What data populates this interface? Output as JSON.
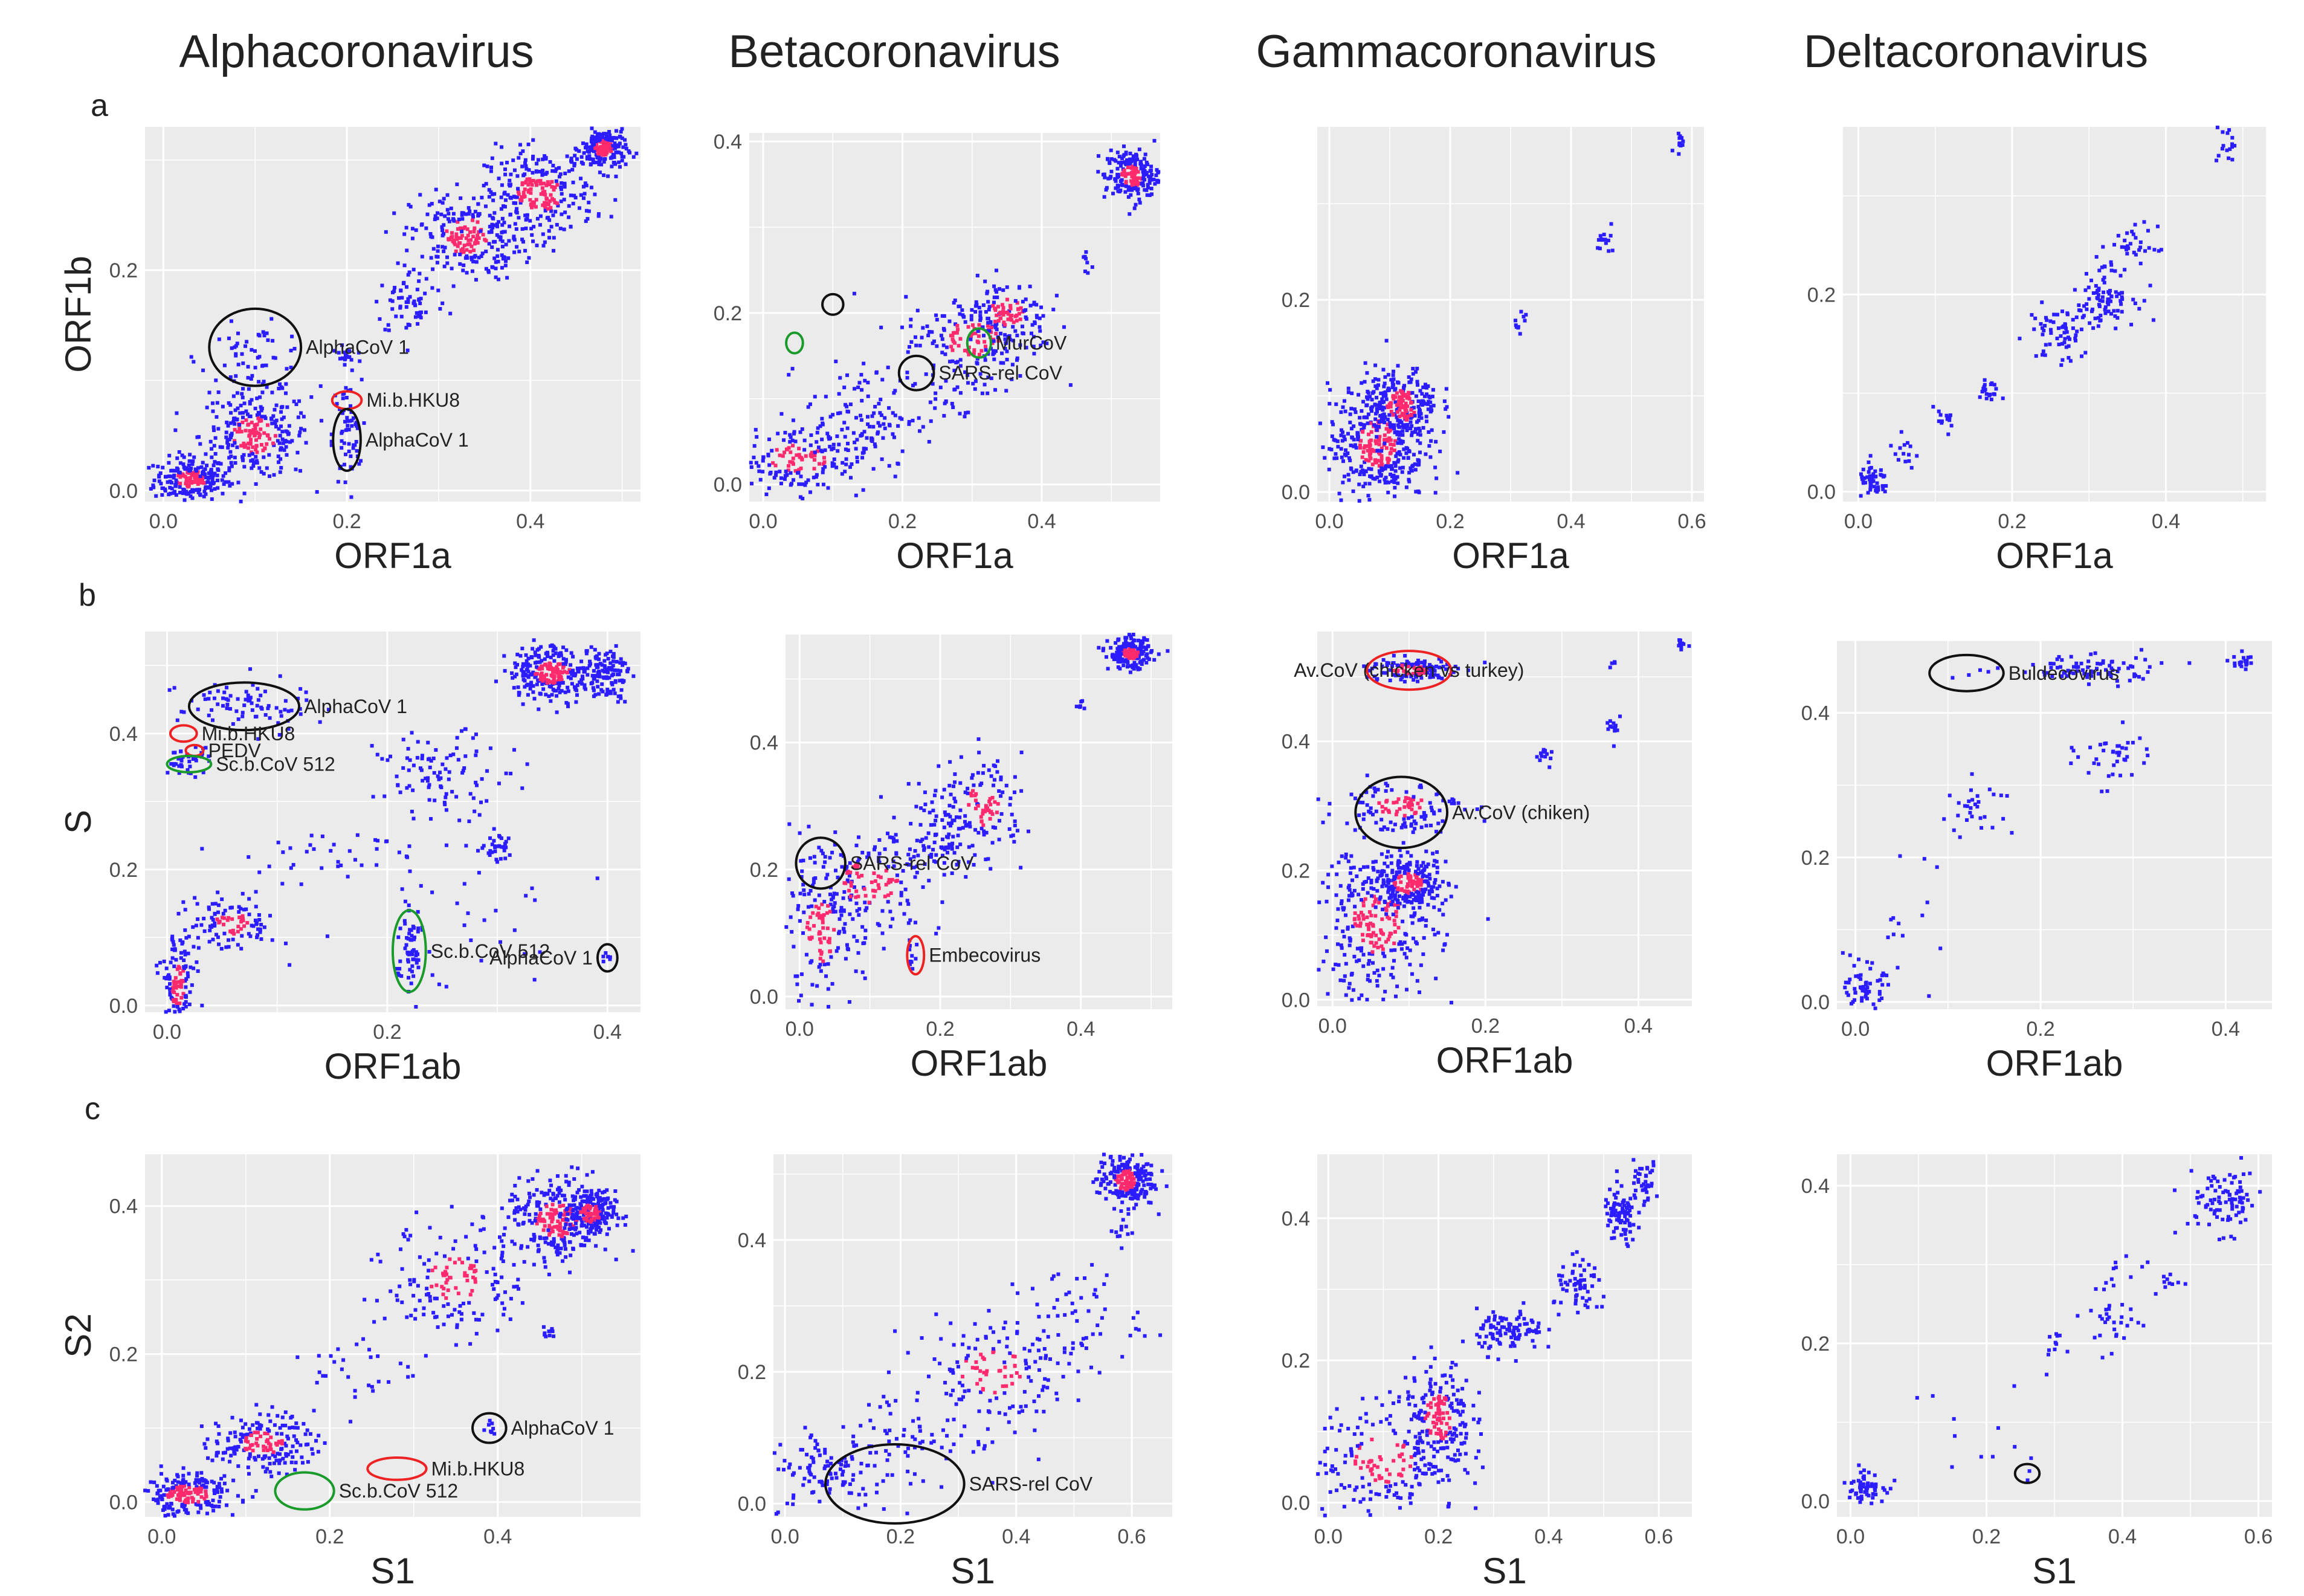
{
  "colors": {
    "panel_bg": "#ebebeb",
    "grid": "#ffffff",
    "point_low": "#2b1dff",
    "point_high": "#ff2a6d",
    "black": "#111111",
    "red": "#ee2222",
    "green": "#1a9a2a"
  },
  "columns": [
    "Alphacoronavirus",
    "Betacoronavirus",
    "Gammacoronavirus",
    "Deltacoronavirus"
  ],
  "rows": [
    "a",
    "b",
    "c"
  ],
  "chart_data": [
    {
      "id": "a-alpha",
      "type": "scatter",
      "xlabel": "ORF1a",
      "ylabel": "ORF1b",
      "xlim": [
        -0.02,
        0.52
      ],
      "ylim": [
        -0.01,
        0.33
      ],
      "xticks": [
        "0.0",
        "0.2",
        "0.4"
      ],
      "yticks": [
        "0.0",
        "0.2"
      ],
      "xtick_vals": [
        0,
        0.2,
        0.4
      ],
      "ytick_vals": [
        0,
        0.2
      ],
      "clusters": [
        [
          0.03,
          0.01,
          0.02,
          0.01,
          220
        ],
        [
          0.1,
          0.05,
          0.03,
          0.02,
          260
        ],
        [
          0.1,
          0.12,
          0.03,
          0.015,
          60
        ],
        [
          0.2,
          0.05,
          0.008,
          0.025,
          60
        ],
        [
          0.2,
          0.12,
          0.008,
          0.006,
          20
        ],
        [
          0.27,
          0.17,
          0.02,
          0.015,
          60
        ],
        [
          0.33,
          0.23,
          0.03,
          0.02,
          240
        ],
        [
          0.41,
          0.27,
          0.03,
          0.02,
          260
        ],
        [
          0.48,
          0.31,
          0.012,
          0.01,
          200
        ]
      ],
      "annotations": [
        {
          "label": "AlphaCoV 1",
          "x": 0.1,
          "y": 0.13,
          "color": "black",
          "rx": 0.05,
          "ry": 0.035
        },
        {
          "label": "Mi.b.HKU8",
          "x": 0.2,
          "y": 0.082,
          "color": "red",
          "rx": 0.016,
          "ry": 0.008
        },
        {
          "label": "AlphaCoV 1",
          "x": 0.2,
          "y": 0.046,
          "color": "black",
          "rx": 0.015,
          "ry": 0.028
        }
      ]
    },
    {
      "id": "a-beta",
      "type": "scatter",
      "xlabel": "ORF1a",
      "ylabel": "",
      "xlim": [
        -0.02,
        0.57
      ],
      "ylim": [
        -0.02,
        0.41
      ],
      "xticks": [
        "0.0",
        "0.2",
        "0.4"
      ],
      "yticks": [
        "0.0",
        "0.2",
        "0.4"
      ],
      "xtick_vals": [
        0,
        0.2,
        0.4
      ],
      "ytick_vals": [
        0,
        0.2,
        0.4
      ],
      "clusters": [
        [
          0.05,
          0.03,
          0.05,
          0.02,
          180
        ],
        [
          0.14,
          0.08,
          0.04,
          0.03,
          100
        ],
        [
          0.3,
          0.17,
          0.05,
          0.025,
          160
        ],
        [
          0.35,
          0.2,
          0.03,
          0.02,
          120
        ],
        [
          0.27,
          0.11,
          0.03,
          0.02,
          40
        ],
        [
          0.46,
          0.26,
          0.006,
          0.006,
          8
        ],
        [
          0.53,
          0.36,
          0.02,
          0.015,
          200
        ]
      ],
      "annotations": [
        {
          "label": "",
          "x": 0.045,
          "y": 0.165,
          "color": "green",
          "rx": 0.012,
          "ry": 0.012
        },
        {
          "label": "",
          "x": 0.1,
          "y": 0.21,
          "color": "black",
          "rx": 0.015,
          "ry": 0.012
        },
        {
          "label": "MurCoV",
          "x": 0.31,
          "y": 0.165,
          "color": "green",
          "rx": 0.017,
          "ry": 0.017
        },
        {
          "label": "SARS-rel CoV",
          "x": 0.22,
          "y": 0.13,
          "color": "black",
          "rx": 0.025,
          "ry": 0.02
        }
      ]
    },
    {
      "id": "a-gamma",
      "type": "scatter",
      "xlabel": "ORF1a",
      "ylabel": "",
      "xlim": [
        -0.02,
        0.62
      ],
      "ylim": [
        -0.01,
        0.38
      ],
      "xticks": [
        "0.0",
        "0.2",
        "0.4",
        "0.6"
      ],
      "yticks": [
        "0.0",
        "0.2"
      ],
      "xtick_vals": [
        0,
        0.2,
        0.4,
        0.6
      ],
      "ytick_vals": [
        0,
        0.2
      ],
      "clusters": [
        [
          0.08,
          0.05,
          0.04,
          0.03,
          380
        ],
        [
          0.12,
          0.09,
          0.03,
          0.02,
          220
        ],
        [
          0.32,
          0.18,
          0.006,
          0.006,
          10
        ],
        [
          0.46,
          0.26,
          0.008,
          0.007,
          14
        ],
        [
          0.58,
          0.36,
          0.006,
          0.005,
          12
        ]
      ],
      "annotations": []
    },
    {
      "id": "a-delta",
      "type": "scatter",
      "xlabel": "ORF1a",
      "ylabel": "",
      "xlim": [
        -0.02,
        0.53
      ],
      "ylim": [
        -0.01,
        0.37
      ],
      "xticks": [
        "0.0",
        "0.2",
        "0.4"
      ],
      "yticks": [
        "0.0",
        "0.2"
      ],
      "xtick_vals": [
        0,
        0.2,
        0.4
      ],
      "ytick_vals": [
        0,
        0.2
      ],
      "clusters": [
        [
          0.02,
          0.01,
          0.01,
          0.008,
          50
        ],
        [
          0.06,
          0.04,
          0.01,
          0.008,
          14
        ],
        [
          0.11,
          0.07,
          0.01,
          0.008,
          14
        ],
        [
          0.17,
          0.1,
          0.008,
          0.008,
          20
        ],
        [
          0.26,
          0.16,
          0.02,
          0.015,
          60
        ],
        [
          0.32,
          0.2,
          0.02,
          0.015,
          90
        ],
        [
          0.36,
          0.25,
          0.015,
          0.01,
          30
        ],
        [
          0.48,
          0.35,
          0.008,
          0.01,
          16
        ]
      ],
      "annotations": []
    },
    {
      "id": "b-alpha",
      "type": "scatter",
      "xlabel": "ORF1ab",
      "ylabel": "S",
      "xlim": [
        -0.02,
        0.43
      ],
      "ylim": [
        -0.01,
        0.55
      ],
      "xticks": [
        "0.0",
        "0.2",
        "0.4"
      ],
      "yticks": [
        "0.0",
        "0.2",
        "0.4"
      ],
      "xtick_vals": [
        0,
        0.2,
        0.4
      ],
      "ytick_vals": [
        0,
        0.2,
        0.4
      ],
      "clusters": [
        [
          0.01,
          0.03,
          0.008,
          0.04,
          120
        ],
        [
          0.06,
          0.12,
          0.02,
          0.02,
          110
        ],
        [
          0.22,
          0.08,
          0.006,
          0.045,
          60
        ],
        [
          0.07,
          0.44,
          0.03,
          0.02,
          80
        ],
        [
          0.02,
          0.36,
          0.01,
          0.01,
          40
        ],
        [
          0.3,
          0.23,
          0.006,
          0.012,
          30
        ],
        [
          0.25,
          0.34,
          0.03,
          0.03,
          100
        ],
        [
          0.35,
          0.49,
          0.02,
          0.02,
          260
        ],
        [
          0.4,
          0.49,
          0.01,
          0.02,
          100
        ],
        [
          0.15,
          0.22,
          0.06,
          0.02,
          40
        ],
        [
          0.27,
          0.12,
          0.05,
          0.05,
          30
        ],
        [
          0.4,
          0.07,
          0.003,
          0.008,
          6
        ]
      ],
      "annotations": [
        {
          "label": "AlphaCoV 1",
          "x": 0.07,
          "y": 0.44,
          "color": "black",
          "rx": 0.05,
          "ry": 0.035
        },
        {
          "label": "Mi.b.HKU8",
          "x": 0.015,
          "y": 0.4,
          "color": "red",
          "rx": 0.012,
          "ry": 0.012
        },
        {
          "label": "PEDV",
          "x": 0.025,
          "y": 0.375,
          "color": "red",
          "rx": 0.008,
          "ry": 0.008
        },
        {
          "label": "Sc.b.CoV 512",
          "x": 0.02,
          "y": 0.355,
          "color": "green",
          "rx": 0.02,
          "ry": 0.012
        },
        {
          "label": "Sc.b.CoV 512",
          "x": 0.22,
          "y": 0.08,
          "color": "green",
          "rx": 0.015,
          "ry": 0.06
        },
        {
          "label": "AlphaCoV 1",
          "x": 0.4,
          "y": 0.07,
          "color": "black",
          "rx": 0.009,
          "ry": 0.02
        }
      ]
    },
    {
      "id": "b-beta",
      "type": "scatter",
      "xlabel": "ORF1ab",
      "ylabel": "",
      "xlim": [
        -0.02,
        0.53
      ],
      "ylim": [
        -0.02,
        0.57
      ],
      "xticks": [
        "0.0",
        "0.2",
        "0.4"
      ],
      "yticks": [
        "0.0",
        "0.2",
        "0.4"
      ],
      "xtick_vals": [
        0,
        0.2,
        0.4
      ],
      "ytick_vals": [
        0,
        0.2,
        0.4
      ],
      "clusters": [
        [
          0.03,
          0.1,
          0.03,
          0.06,
          160
        ],
        [
          0.1,
          0.18,
          0.05,
          0.04,
          140
        ],
        [
          0.2,
          0.25,
          0.04,
          0.03,
          100
        ],
        [
          0.26,
          0.3,
          0.03,
          0.04,
          120
        ],
        [
          0.16,
          0.07,
          0.004,
          0.015,
          10
        ],
        [
          0.4,
          0.46,
          0.004,
          0.004,
          6
        ],
        [
          0.47,
          0.54,
          0.015,
          0.012,
          200
        ]
      ],
      "annotations": [
        {
          "label": "SARS-rel CoV",
          "x": 0.03,
          "y": 0.21,
          "color": "black",
          "rx": 0.035,
          "ry": 0.04
        },
        {
          "label": "Embecovirus",
          "x": 0.165,
          "y": 0.065,
          "color": "red",
          "rx": 0.012,
          "ry": 0.03
        }
      ]
    },
    {
      "id": "b-gamma",
      "type": "scatter",
      "xlabel": "ORF1ab",
      "ylabel": "",
      "xlim": [
        -0.02,
        0.47
      ],
      "ylim": [
        -0.01,
        0.57
      ],
      "xticks": [
        "0.0",
        "0.2",
        "0.4"
      ],
      "yticks": [
        "0.0",
        "0.2",
        "0.4"
      ],
      "xtick_vals": [
        0,
        0.2,
        0.4
      ],
      "ytick_vals": [
        0,
        0.2,
        0.4
      ],
      "clusters": [
        [
          0.06,
          0.12,
          0.04,
          0.06,
          300
        ],
        [
          0.1,
          0.18,
          0.025,
          0.02,
          220
        ],
        [
          0.09,
          0.3,
          0.04,
          0.02,
          120
        ],
        [
          0.1,
          0.51,
          0.03,
          0.01,
          120
        ],
        [
          0.28,
          0.38,
          0.006,
          0.008,
          12
        ],
        [
          0.37,
          0.42,
          0.006,
          0.01,
          14
        ],
        [
          0.46,
          0.55,
          0.005,
          0.006,
          10
        ],
        [
          0.37,
          0.52,
          0.003,
          0.004,
          4
        ]
      ],
      "annotations": [
        {
          "label": "Av.CoV (chicken vs turkey)",
          "x": 0.1,
          "y": 0.51,
          "color": "red",
          "rx": 0.055,
          "ry": 0.03
        },
        {
          "label": "Av.CoV (chiken)",
          "x": 0.09,
          "y": 0.29,
          "color": "black",
          "rx": 0.06,
          "ry": 0.055
        }
      ]
    },
    {
      "id": "b-delta",
      "type": "scatter",
      "xlabel": "ORF1ab",
      "ylabel": "",
      "xlim": [
        -0.02,
        0.45
      ],
      "ylim": [
        -0.01,
        0.5
      ],
      "xticks": [
        "0.0",
        "0.2",
        "0.4"
      ],
      "yticks": [
        "0.0",
        "0.2",
        "0.4"
      ],
      "xtick_vals": [
        0,
        0.2,
        0.4
      ],
      "ytick_vals": [
        0,
        0.2,
        0.4
      ],
      "clusters": [
        [
          0.01,
          0.02,
          0.01,
          0.015,
          60
        ],
        [
          0.05,
          0.12,
          0.02,
          0.04,
          14
        ],
        [
          0.13,
          0.27,
          0.02,
          0.02,
          30
        ],
        [
          0.28,
          0.34,
          0.02,
          0.02,
          40
        ],
        [
          0.25,
          0.46,
          0.04,
          0.01,
          80
        ],
        [
          0.42,
          0.47,
          0.006,
          0.006,
          20
        ],
        [
          0.12,
          0.455,
          0.01,
          0.004,
          4
        ]
      ],
      "annotations": [
        {
          "label": "Buldecovirus",
          "x": 0.12,
          "y": 0.455,
          "color": "black",
          "rx": 0.04,
          "ry": 0.025
        }
      ]
    },
    {
      "id": "c-alpha",
      "type": "scatter",
      "xlabel": "S1",
      "ylabel": "S2",
      "xlim": [
        -0.02,
        0.57
      ],
      "ylim": [
        -0.02,
        0.47
      ],
      "xticks": [
        "0.0",
        "0.2",
        "0.4"
      ],
      "yticks": [
        "0.0",
        "0.2",
        "0.4"
      ],
      "xtick_vals": [
        0,
        0.2,
        0.4
      ],
      "ytick_vals": [
        0,
        0.2,
        0.4
      ],
      "clusters": [
        [
          0.03,
          0.01,
          0.03,
          0.015,
          220
        ],
        [
          0.12,
          0.08,
          0.03,
          0.02,
          180
        ],
        [
          0.35,
          0.3,
          0.04,
          0.04,
          160
        ],
        [
          0.47,
          0.38,
          0.03,
          0.03,
          260
        ],
        [
          0.51,
          0.39,
          0.015,
          0.015,
          200
        ],
        [
          0.24,
          0.18,
          0.03,
          0.03,
          30
        ],
        [
          0.46,
          0.23,
          0.005,
          0.006,
          10
        ],
        [
          0.39,
          0.1,
          0.006,
          0.008,
          8
        ]
      ],
      "annotations": [
        {
          "label": "AlphaCoV 1",
          "x": 0.39,
          "y": 0.1,
          "color": "black",
          "rx": 0.02,
          "ry": 0.02
        },
        {
          "label": "Mi.b.HKU8",
          "x": 0.28,
          "y": 0.045,
          "color": "red",
          "rx": 0.035,
          "ry": 0.015
        },
        {
          "label": "Sc.b.CoV 512",
          "x": 0.17,
          "y": 0.015,
          "color": "green",
          "rx": 0.035,
          "ry": 0.025
        }
      ]
    },
    {
      "id": "c-beta",
      "type": "scatter",
      "xlabel": "S1",
      "ylabel": "",
      "xlim": [
        -0.02,
        0.67
      ],
      "ylim": [
        -0.02,
        0.53
      ],
      "xticks": [
        "0.0",
        "0.2",
        "0.4",
        "0.6"
      ],
      "yticks": [
        "0.0",
        "0.2",
        "0.4"
      ],
      "xtick_vals": [
        0,
        0.2,
        0.4,
        0.6
      ],
      "ytick_vals": [
        0,
        0.2,
        0.4
      ],
      "clusters": [
        [
          0.07,
          0.05,
          0.05,
          0.03,
          100
        ],
        [
          0.22,
          0.1,
          0.08,
          0.04,
          80
        ],
        [
          0.36,
          0.2,
          0.07,
          0.04,
          140
        ],
        [
          0.5,
          0.28,
          0.06,
          0.04,
          60
        ],
        [
          0.58,
          0.41,
          0.01,
          0.01,
          10
        ],
        [
          0.59,
          0.49,
          0.025,
          0.02,
          220
        ]
      ],
      "annotations": [
        {
          "label": "SARS-rel CoV",
          "x": 0.19,
          "y": 0.03,
          "color": "black",
          "rx": 0.12,
          "ry": 0.06
        }
      ]
    },
    {
      "id": "c-gamma",
      "type": "scatter",
      "xlabel": "S1",
      "ylabel": "",
      "xlim": [
        -0.02,
        0.66
      ],
      "ylim": [
        -0.02,
        0.49
      ],
      "xticks": [
        "0.0",
        "0.2",
        "0.4",
        "0.6"
      ],
      "yticks": [
        "0.0",
        "0.2",
        "0.4"
      ],
      "xtick_vals": [
        0,
        0.2,
        0.4,
        0.6
      ],
      "ytick_vals": [
        0,
        0.2,
        0.4
      ],
      "clusters": [
        [
          0.1,
          0.06,
          0.07,
          0.04,
          180
        ],
        [
          0.2,
          0.12,
          0.03,
          0.04,
          200
        ],
        [
          0.33,
          0.24,
          0.03,
          0.015,
          100
        ],
        [
          0.46,
          0.3,
          0.025,
          0.02,
          60
        ],
        [
          0.53,
          0.4,
          0.015,
          0.02,
          80
        ],
        [
          0.57,
          0.45,
          0.015,
          0.015,
          40
        ]
      ],
      "annotations": []
    },
    {
      "id": "c-delta",
      "type": "scatter",
      "xlabel": "S1",
      "ylabel": "",
      "xlim": [
        -0.02,
        0.62
      ],
      "ylim": [
        -0.02,
        0.44
      ],
      "xticks": [
        "0.0",
        "0.2",
        "0.4",
        "0.6"
      ],
      "yticks": [
        "0.0",
        "0.2",
        "0.4"
      ],
      "xtick_vals": [
        0,
        0.2,
        0.4,
        0.6
      ],
      "ytick_vals": [
        0,
        0.2,
        0.4
      ],
      "clusters": [
        [
          0.02,
          0.02,
          0.015,
          0.01,
          60
        ],
        [
          0.3,
          0.2,
          0.006,
          0.006,
          10
        ],
        [
          0.39,
          0.24,
          0.02,
          0.03,
          40
        ],
        [
          0.47,
          0.28,
          0.01,
          0.01,
          10
        ],
        [
          0.55,
          0.38,
          0.03,
          0.02,
          90
        ],
        [
          0.2,
          0.09,
          0.05,
          0.05,
          12
        ],
        [
          0.26,
          0.03,
          0.004,
          0.004,
          2
        ]
      ],
      "annotations": [
        {
          "label": "",
          "x": 0.26,
          "y": 0.035,
          "color": "black",
          "rx": 0.018,
          "ry": 0.012
        }
      ]
    }
  ]
}
